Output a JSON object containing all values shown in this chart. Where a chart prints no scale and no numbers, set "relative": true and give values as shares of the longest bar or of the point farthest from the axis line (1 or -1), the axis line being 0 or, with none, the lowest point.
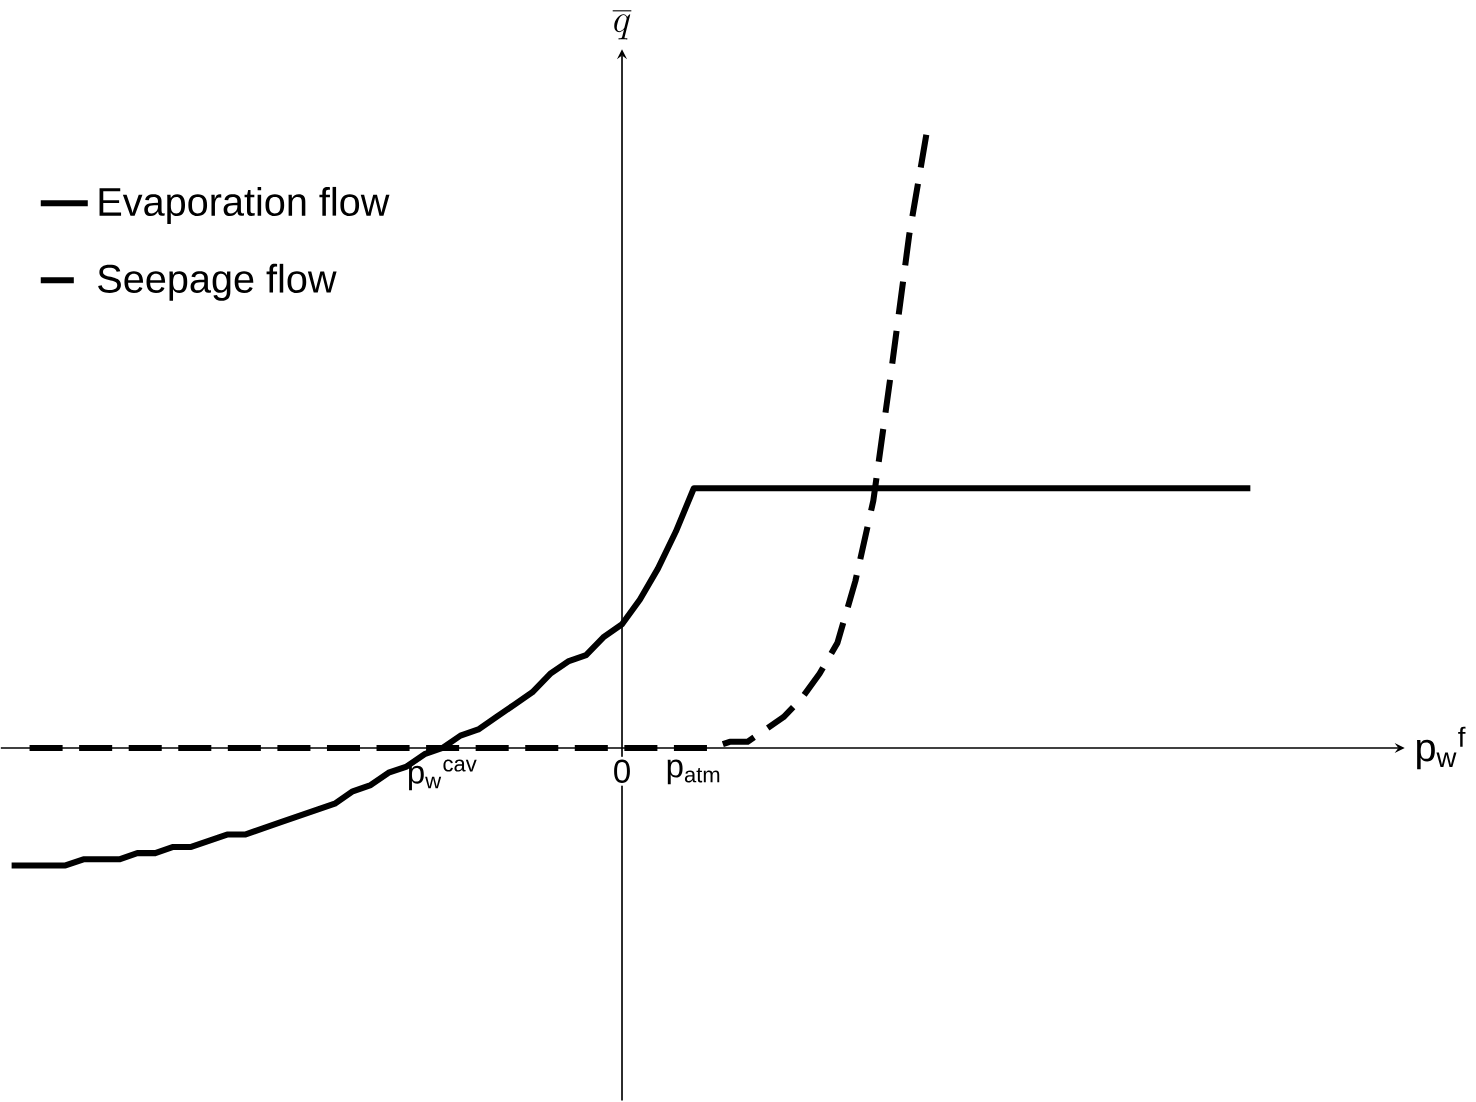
{
  "chart_data": {
    "type": "line",
    "relative": true,
    "xlabel": "p$_{w}$$^{f}$",
    "ylabel": "\\overline{q}",
    "categories": [
      null,
      null,
      null,
      null,
      null,
      null,
      null,
      null,
      null,
      null,
      null,
      null,
      null,
      null,
      null,
      null,
      null,
      null,
      null,
      null,
      null,
      null,
      null,
      null,
      "p$_{w}$$^{cav}$",
      null,
      null,
      null,
      null,
      null,
      null,
      null,
      null,
      null,
      "0",
      null,
      null,
      null,
      "p$_{atm}$",
      null,
      null,
      null,
      null,
      null,
      null,
      null,
      null,
      null,
      null,
      null,
      null,
      null,
      null,
      null,
      null,
      null,
      null,
      null,
      null,
      null,
      null,
      null,
      null,
      null,
      null,
      null,
      null,
      null,
      null,
      null
    ],
    "legend": "top left",
    "marker": "none",
    "series": [
      {
        "name": "Evaporation flow",
        "color": "#000000",
        "line_style": "solid",
        "values": [
          -0.19,
          -0.19,
          -0.19,
          -0.19,
          -0.18,
          -0.18,
          -0.18,
          -0.17,
          -0.17,
          -0.16,
          -0.16,
          -0.15,
          -0.14,
          -0.14,
          -0.13,
          -0.12,
          -0.11,
          -0.1,
          -0.09,
          -0.07,
          -0.06,
          -0.04,
          -0.03,
          -0.01,
          0,
          0.02,
          0.03,
          0.05,
          0.07,
          0.09,
          0.12,
          0.14,
          0.15,
          0.18,
          0.2,
          0.24,
          0.29,
          0.35,
          0.42,
          0.42,
          0.42,
          0.42,
          0.42,
          0.42,
          0.42,
          0.42,
          0.42,
          0.42,
          0.42,
          0.42,
          0.42,
          0.42,
          0.42,
          0.42,
          0.42,
          0.42,
          0.42,
          0.42,
          0.42,
          0.42,
          0.42,
          0.42,
          0.42,
          0.42,
          0.42,
          0.42,
          0.42,
          0.42,
          0.42,
          0.42
        ]
      },
      {
        "name": "Seepage flow",
        "color": "#000000",
        "line_style": "dashed",
        "values": [
          null,
          0,
          0,
          0,
          0,
          0,
          0,
          0,
          0,
          0,
          0,
          0,
          0,
          0,
          0,
          0,
          0,
          0,
          0,
          0,
          0,
          0,
          0,
          0,
          0,
          0,
          0,
          0,
          0,
          0,
          0,
          0,
          0,
          0,
          0,
          0,
          0,
          0,
          0,
          0,
          0.01,
          0.01,
          0.03,
          0.05,
          0.08,
          0.12,
          0.17,
          0.27,
          0.4,
          0.61,
          0.83,
          1,
          null,
          null,
          null,
          null,
          null,
          null,
          null,
          null,
          null,
          null,
          null,
          null,
          null,
          null,
          null,
          null,
          null,
          null
        ]
      }
    ]
  }
}
